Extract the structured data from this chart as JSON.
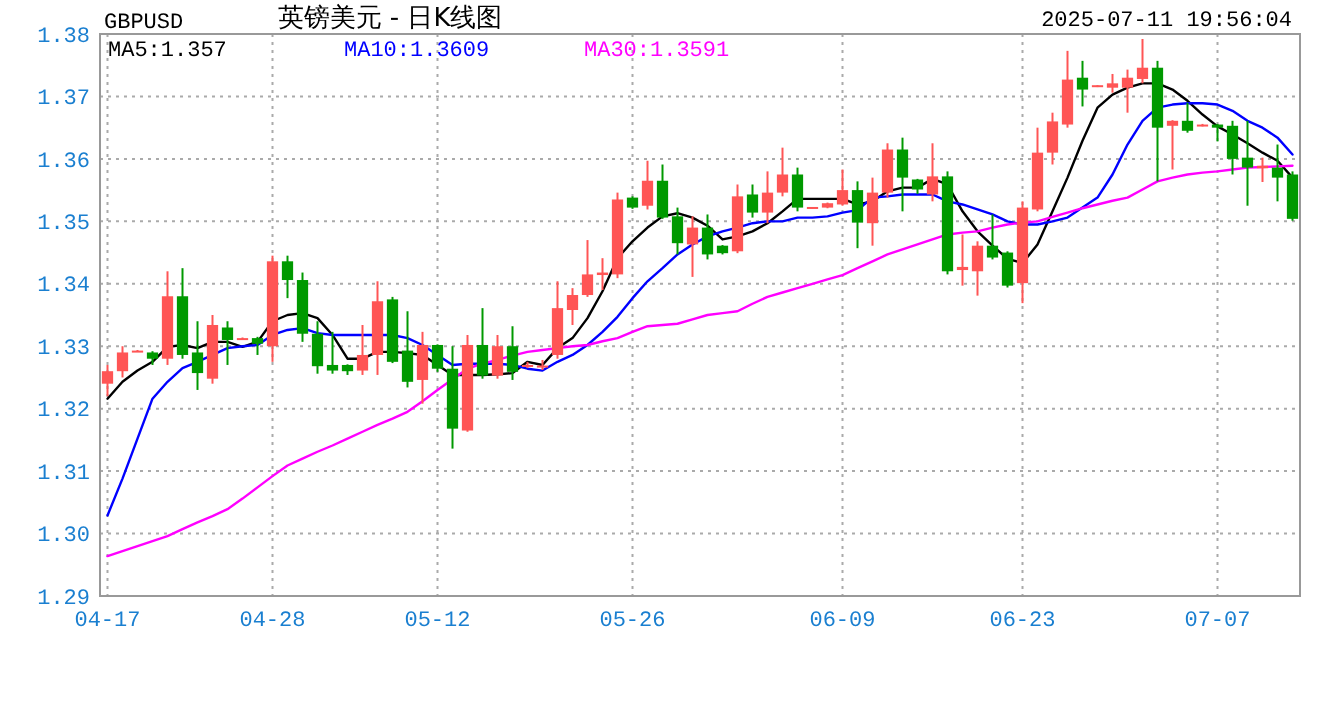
{
  "chart_data": {
    "type": "candlestick",
    "title": "英镑美元 - 日K线图",
    "subtitle": "GBPUSD",
    "annotations": [
      "2025-07-11 19:56:04"
    ],
    "categories": [
      "04-17",
      null,
      null,
      null,
      null,
      null,
      null,
      null,
      null,
      null,
      null,
      "04-28",
      null,
      null,
      null,
      null,
      null,
      null,
      null,
      null,
      null,
      null,
      "05-12",
      null,
      null,
      null,
      null,
      null,
      null,
      null,
      null,
      null,
      null,
      null,
      null,
      "05-26",
      null,
      null,
      null,
      null,
      null,
      null,
      null,
      null,
      null,
      null,
      null,
      null,
      null,
      "06-09",
      null,
      null,
      null,
      null,
      null,
      null,
      null,
      null,
      null,
      null,
      null,
      "06-23",
      null,
      null,
      null,
      null,
      null,
      null,
      null,
      null,
      null,
      null,
      null,
      null,
      "07-07",
      null,
      null,
      null,
      null,
      null
    ],
    "ohlc": [
      [
        1.324,
        1.327,
        1.322,
        1.326
      ],
      [
        1.326,
        1.33,
        1.325,
        1.329
      ],
      [
        1.3292,
        1.3294,
        1.3291,
        1.3293
      ],
      [
        1.329,
        1.3292,
        1.327,
        1.328
      ],
      [
        1.328,
        1.342,
        1.327,
        1.338
      ],
      [
        1.338,
        1.3425,
        1.328,
        1.3286
      ],
      [
        1.329,
        1.334,
        1.323,
        1.3257
      ],
      [
        1.3248,
        1.335,
        1.324,
        1.3334
      ],
      [
        1.333,
        1.334,
        1.327,
        1.331
      ],
      [
        1.3312,
        1.3314,
        1.3311,
        1.3313
      ],
      [
        1.3313,
        1.3315,
        1.3286,
        1.3304
      ],
      [
        1.33,
        1.3445,
        1.3275,
        1.3436
      ],
      [
        1.3436,
        1.3445,
        1.3377,
        1.3406
      ],
      [
        1.3406,
        1.3418,
        1.3307,
        1.332
      ],
      [
        1.332,
        1.334,
        1.3256,
        1.3268
      ],
      [
        1.327,
        1.3323,
        1.3256,
        1.3261
      ],
      [
        1.327,
        1.3271,
        1.3254,
        1.326
      ],
      [
        1.3261,
        1.3334,
        1.3254,
        1.3286
      ],
      [
        1.3286,
        1.3404,
        1.3254,
        1.3372
      ],
      [
        1.3375,
        1.3379,
        1.3273,
        1.3275
      ],
      [
        1.3293,
        1.3356,
        1.3234,
        1.3243
      ],
      [
        1.3246,
        1.3323,
        1.3208,
        1.3302
      ],
      [
        1.3302,
        1.3303,
        1.3259,
        1.3264
      ],
      [
        1.3264,
        1.33,
        1.3136,
        1.3168
      ],
      [
        1.3165,
        1.3318,
        1.3163,
        1.3302
      ],
      [
        1.3302,
        1.3361,
        1.3248,
        1.3253
      ],
      [
        1.3253,
        1.3318,
        1.3248,
        1.33
      ],
      [
        1.33,
        1.3332,
        1.3246,
        1.3259
      ],
      [
        1.3268,
        1.3275,
        1.3265,
        1.327
      ],
      [
        1.3266,
        1.3278,
        1.3262,
        1.3269
      ],
      [
        1.3286,
        1.3404,
        1.328,
        1.3361
      ],
      [
        1.3358,
        1.3393,
        1.3334,
        1.3382
      ],
      [
        1.3382,
        1.347,
        1.3379,
        1.3415
      ],
      [
        1.3414,
        1.3441,
        1.339,
        1.3418
      ],
      [
        1.3415,
        1.3546,
        1.3409,
        1.3535
      ],
      [
        1.3538,
        1.354,
        1.352,
        1.3522
      ],
      [
        1.3525,
        1.3597,
        1.3519,
        1.3565
      ],
      [
        1.3565,
        1.3591,
        1.3504,
        1.3506
      ],
      [
        1.3508,
        1.3522,
        1.3447,
        1.3465
      ],
      [
        1.3463,
        1.3508,
        1.3411,
        1.349
      ],
      [
        1.349,
        1.3511,
        1.3439,
        1.3447
      ],
      [
        1.3461,
        1.3462,
        1.3447,
        1.3449
      ],
      [
        1.3452,
        1.3559,
        1.3449,
        1.354
      ],
      [
        1.3543,
        1.3559,
        1.3506,
        1.3514
      ],
      [
        1.3514,
        1.358,
        1.3497,
        1.3546
      ],
      [
        1.3546,
        1.3618,
        1.354,
        1.3575
      ],
      [
        1.3575,
        1.3586,
        1.3516,
        1.3522
      ],
      [
        1.3521,
        1.3523,
        1.352,
        1.3523
      ],
      [
        1.3522,
        1.353,
        1.3521,
        1.3529
      ],
      [
        1.3527,
        1.3583,
        1.3525,
        1.355
      ],
      [
        1.355,
        1.3564,
        1.3457,
        1.3498
      ],
      [
        1.3497,
        1.357,
        1.3461,
        1.3546
      ],
      [
        1.3546,
        1.3625,
        1.3538,
        1.3615
      ],
      [
        1.3615,
        1.3634,
        1.3516,
        1.357
      ],
      [
        1.3567,
        1.3568,
        1.3544,
        1.3551
      ],
      [
        1.3543,
        1.3625,
        1.3532,
        1.3572
      ],
      [
        1.3572,
        1.358,
        1.3415,
        1.342
      ],
      [
        1.3422,
        1.3479,
        1.3397,
        1.3427
      ],
      [
        1.342,
        1.3468,
        1.3381,
        1.3461
      ],
      [
        1.3461,
        1.3511,
        1.3439,
        1.3442
      ],
      [
        1.345,
        1.3452,
        1.3394,
        1.3397
      ],
      [
        1.3401,
        1.3532,
        1.3369,
        1.3522
      ],
      [
        1.3519,
        1.365,
        1.3516,
        1.361
      ],
      [
        1.361,
        1.3674,
        1.3591,
        1.366
      ],
      [
        1.3655,
        1.3773,
        1.365,
        1.3727
      ],
      [
        1.373,
        1.3757,
        1.3684,
        1.3711
      ],
      [
        1.3716,
        1.3718,
        1.3715,
        1.3718
      ],
      [
        1.3714,
        1.3736,
        1.3706,
        1.3721
      ],
      [
        1.3714,
        1.3743,
        1.3674,
        1.373
      ],
      [
        1.3728,
        1.3792,
        1.3721,
        1.3746
      ],
      [
        1.3746,
        1.3757,
        1.3564,
        1.365
      ],
      [
        1.3653,
        1.3662,
        1.3583,
        1.3661
      ],
      [
        1.3661,
        1.369,
        1.3642,
        1.3645
      ],
      [
        1.3653,
        1.3656,
        1.3652,
        1.3655
      ],
      [
        1.3655,
        1.3656,
        1.3628,
        1.365
      ],
      [
        1.3653,
        1.3661,
        1.3575,
        1.36
      ],
      [
        1.3602,
        1.3661,
        1.3525,
        1.3586
      ],
      [
        1.3585,
        1.3602,
        1.3563,
        1.3589
      ],
      [
        1.3586,
        1.3623,
        1.3532,
        1.357
      ],
      [
        1.3575,
        1.358,
        1.3501,
        1.3504
      ]
    ],
    "series": [
      {
        "type": "line",
        "name": "MA5:1.357",
        "color": "#000000",
        "values": [
          1.3216,
          1.3243,
          1.3261,
          1.3275,
          1.3299,
          1.3302,
          1.3297,
          1.3307,
          1.3307,
          1.3299,
          1.3307,
          1.334,
          1.335,
          1.3353,
          1.3345,
          1.3318,
          1.328,
          1.328,
          1.3291,
          1.3291,
          1.3289,
          1.3286,
          1.327,
          1.3254,
          1.3254,
          1.3254,
          1.3255,
          1.3257,
          1.3275,
          1.327,
          1.3297,
          1.3313,
          1.3345,
          1.3388,
          1.3441,
          1.3468,
          1.349,
          1.3508,
          1.3513,
          1.3506,
          1.3493,
          1.3471,
          1.3476,
          1.3484,
          1.3497,
          1.3516,
          1.3536,
          1.3536,
          1.3536,
          1.3536,
          1.3527,
          1.3532,
          1.3548,
          1.3554,
          1.3554,
          1.3568,
          1.3559,
          1.3516,
          1.3484,
          1.3461,
          1.344,
          1.3433,
          1.3463,
          1.3516,
          1.357,
          1.3629,
          1.3682,
          1.3703,
          1.3714,
          1.3721,
          1.3721,
          1.3711,
          1.3693,
          1.3671,
          1.3652,
          1.3639,
          1.3625,
          1.361,
          1.3597,
          1.357
        ]
      },
      {
        "type": "line",
        "name": "MA10:1.3609",
        "color": "#0000ff",
        "values": [
          1.3029,
          1.3088,
          1.3152,
          1.3216,
          1.3243,
          1.3265,
          1.3275,
          1.3286,
          1.3297,
          1.33,
          1.3302,
          1.3318,
          1.3326,
          1.3329,
          1.3321,
          1.3318,
          1.3318,
          1.3318,
          1.3318,
          1.3318,
          1.3313,
          1.3302,
          1.3286,
          1.327,
          1.3272,
          1.3272,
          1.3272,
          1.327,
          1.3264,
          1.3261,
          1.3275,
          1.3286,
          1.3302,
          1.3323,
          1.3347,
          1.3377,
          1.3404,
          1.3425,
          1.3447,
          1.3463,
          1.3476,
          1.3484,
          1.349,
          1.3497,
          1.35,
          1.35,
          1.3506,
          1.3506,
          1.3508,
          1.3514,
          1.3518,
          1.3538,
          1.354,
          1.3543,
          1.3543,
          1.3543,
          1.3532,
          1.3527,
          1.3519,
          1.3511,
          1.35,
          1.3495,
          1.3495,
          1.35,
          1.3506,
          1.3522,
          1.3538,
          1.3575,
          1.3623,
          1.3661,
          1.3682,
          1.3687,
          1.3689,
          1.3689,
          1.3687,
          1.3677,
          1.3661,
          1.365,
          1.3634,
          1.3607
        ]
      },
      {
        "type": "line",
        "name": "MA30:1.3591",
        "color": "#ff00ff",
        "values": [
          1.2964,
          1.2972,
          1.298,
          1.2988,
          1.2996,
          1.3007,
          1.3018,
          1.3028,
          1.3039,
          1.3056,
          1.3074,
          1.3092,
          1.3109,
          1.312,
          1.3131,
          1.3141,
          1.3152,
          1.3163,
          1.3174,
          1.3184,
          1.3195,
          1.3212,
          1.323,
          1.3247,
          1.3264,
          1.3272,
          1.3278,
          1.3285,
          1.3291,
          1.3294,
          1.3297,
          1.33,
          1.3302,
          1.3308,
          1.3313,
          1.3323,
          1.3332,
          1.3334,
          1.3336,
          1.3343,
          1.335,
          1.3353,
          1.3356,
          1.3368,
          1.3379,
          1.3386,
          1.3393,
          1.34,
          1.3407,
          1.3414,
          1.3425,
          1.3436,
          1.3447,
          1.3455,
          1.3463,
          1.3471,
          1.3479,
          1.3482,
          1.3484,
          1.349,
          1.3495,
          1.3498,
          1.35,
          1.3507,
          1.3514,
          1.3521,
          1.3527,
          1.3533,
          1.3538,
          1.3551,
          1.3564,
          1.357,
          1.3575,
          1.3578,
          1.358,
          1.3583,
          1.3586,
          1.3587,
          1.3588,
          1.3589
        ]
      }
    ],
    "ylim": [
      1.29,
      1.38
    ],
    "yticks": [
      1.29,
      {
        "value": 1.3,
        "label": "1.30"
      },
      1.31,
      1.32,
      1.33,
      1.34,
      1.35,
      1.36,
      1.37,
      1.38
    ],
    "grid": true,
    "legend": "top left"
  }
}
